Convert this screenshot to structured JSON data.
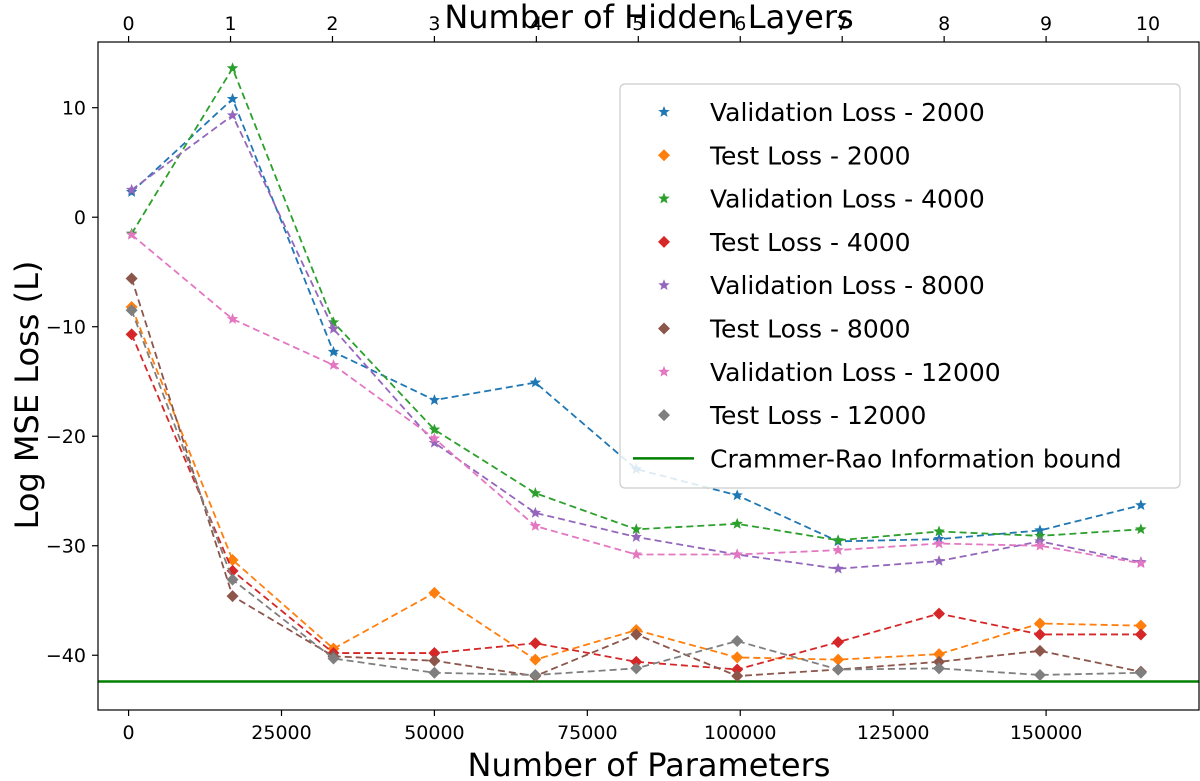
{
  "chart_data": {
    "type": "line",
    "xlabel": "Number of Parameters",
    "ylabel": "Log MSE Loss (L)",
    "x2label": "Number of Hidden Layers",
    "xlim": [
      -5000,
      175000
    ],
    "ylim": [
      -45,
      16
    ],
    "xticks": [
      0,
      25000,
      50000,
      75000,
      100000,
      125000,
      150000
    ],
    "yticks": [
      -40,
      -30,
      -20,
      -10,
      0,
      10
    ],
    "x2ticks": [
      {
        "value": 0,
        "x": 0
      },
      {
        "value": 1,
        "x": 16667
      },
      {
        "value": 2,
        "x": 33333
      },
      {
        "value": 3,
        "x": 50000
      },
      {
        "value": 4,
        "x": 66667
      },
      {
        "value": 5,
        "x": 83333
      },
      {
        "value": 6,
        "x": 100000
      },
      {
        "value": 7,
        "x": 116667
      },
      {
        "value": 8,
        "x": 133333
      },
      {
        "value": 9,
        "x": 150000
      },
      {
        "value": 10,
        "x": 166667
      }
    ],
    "x": [
      500,
      17000,
      33500,
      50000,
      66500,
      83000,
      99500,
      116000,
      132500,
      149000,
      165500
    ],
    "series": [
      {
        "name": "Validation Loss - 2000",
        "color": "#1f77b4",
        "marker": "star",
        "values": [
          2.3,
          10.8,
          -12.3,
          -16.7,
          -15.1,
          -23.0,
          -25.4,
          -29.6,
          -29.4,
          -28.6,
          -26.3
        ]
      },
      {
        "name": "Test Loss - 2000",
        "color": "#ff7f0e",
        "marker": "diamond",
        "values": [
          -8.2,
          -31.3,
          -39.4,
          -34.3,
          -40.4,
          -37.7,
          -40.2,
          -40.4,
          -39.9,
          -37.1,
          -37.3
        ]
      },
      {
        "name": "Validation Loss - 4000",
        "color": "#2ca02c",
        "marker": "star",
        "values": [
          -1.5,
          13.6,
          -9.6,
          -19.4,
          -25.2,
          -28.5,
          -28.0,
          -29.5,
          -28.7,
          -29.1,
          -28.5
        ]
      },
      {
        "name": "Test Loss - 4000",
        "color": "#d62728",
        "marker": "diamond",
        "values": [
          -10.7,
          -32.3,
          -39.8,
          -39.8,
          -38.9,
          -40.6,
          -41.3,
          -38.8,
          -36.2,
          -38.1,
          -38.1
        ]
      },
      {
        "name": "Validation Loss - 8000",
        "color": "#9467bd",
        "marker": "star",
        "values": [
          2.5,
          9.3,
          -10.2,
          -20.6,
          -27.0,
          -29.2,
          -30.8,
          -32.1,
          -31.4,
          -29.6,
          -31.5
        ]
      },
      {
        "name": "Test Loss - 8000",
        "color": "#8c564b",
        "marker": "diamond",
        "values": [
          -5.6,
          -34.6,
          -40.1,
          -40.5,
          -41.9,
          -38.1,
          -41.9,
          -41.3,
          -40.6,
          -39.6,
          -41.5
        ]
      },
      {
        "name": "Validation Loss - 12000",
        "color": "#e377c2",
        "marker": "star",
        "values": [
          -1.6,
          -9.3,
          -13.5,
          -20.2,
          -28.2,
          -30.8,
          -30.8,
          -30.4,
          -29.8,
          -30.0,
          -31.6
        ]
      },
      {
        "name": "Test Loss - 12000",
        "color": "#7f7f7f",
        "marker": "diamond",
        "values": [
          -8.5,
          -33.1,
          -40.3,
          -41.6,
          -41.8,
          -41.2,
          -38.7,
          -41.3,
          -41.2,
          -41.8,
          -41.6
        ]
      }
    ],
    "reference_line": {
      "name": "Crammer-Rao Information bound",
      "color": "#008000",
      "y": -42.4
    },
    "legend_position": "upper right",
    "grid": false
  }
}
